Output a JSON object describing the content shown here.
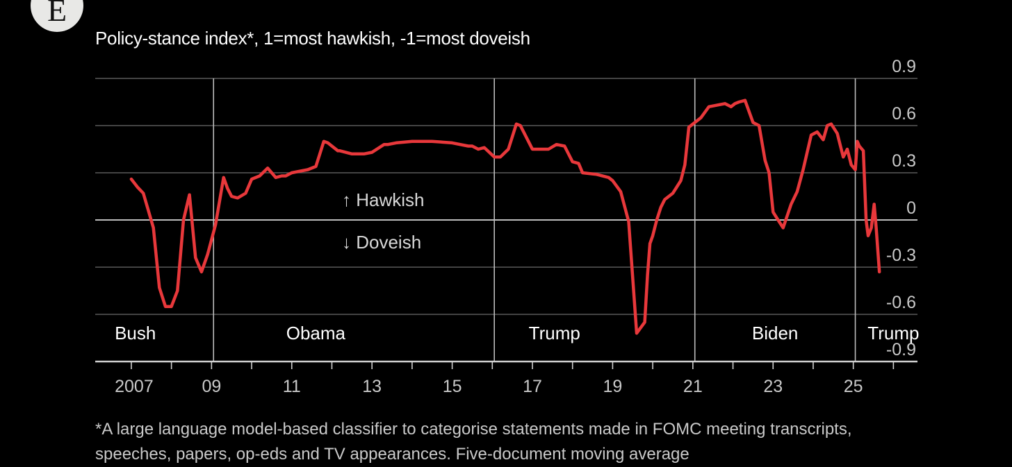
{
  "logo_letter": "E",
  "subtitle": "Policy-stance index*, 1=most hawkish, -1=most doveish",
  "footnote_line1": "*A large language model-based classifier to categorise statements made in FOMC meeting transcripts,",
  "footnote_line2": "speeches, papers, op-eds and TV appearances. Five-document moving average",
  "colors": {
    "line": "#e8383b",
    "grid": "#5a5a5a",
    "zero": "#bdbdbd",
    "axis": "#d0d0d0",
    "divider": "#bdbdbd"
  },
  "chart_data": {
    "type": "line",
    "title": "",
    "ylabel": "Policy-stance index",
    "xlabel": "",
    "xlim": [
      2006.1,
      2026.6
    ],
    "ylim": [
      -0.9,
      0.9
    ],
    "y_ticks": [
      0.9,
      0.6,
      0.3,
      0,
      -0.3,
      -0.6,
      -0.9
    ],
    "y_tick_labels": [
      "0.9",
      "0.6",
      "0.3",
      "0",
      "-0.3",
      "-0.6",
      "-0.9"
    ],
    "x_ticks": [
      2007,
      2008,
      2009,
      2010,
      2011,
      2012,
      2013,
      2014,
      2015,
      2016,
      2017,
      2018,
      2019,
      2020,
      2021,
      2022,
      2023,
      2024,
      2025,
      2026
    ],
    "x_tick_labels": [
      {
        "year": 2007,
        "label": "2007"
      },
      {
        "year": 2009,
        "label": "09"
      },
      {
        "year": 2011,
        "label": "11"
      },
      {
        "year": 2013,
        "label": "13"
      },
      {
        "year": 2015,
        "label": "15"
      },
      {
        "year": 2017,
        "label": "17"
      },
      {
        "year": 2019,
        "label": "19"
      },
      {
        "year": 2021,
        "label": "21"
      },
      {
        "year": 2023,
        "label": "23"
      },
      {
        "year": 2025,
        "label": "25"
      }
    ],
    "annotations": {
      "hawkish": "↑ Hawkish",
      "doveish": "↓ Doveish"
    },
    "presidencies": [
      {
        "name": "Bush",
        "start": 2006.1,
        "end": 2009.05
      },
      {
        "name": "Obama",
        "start": 2009.05,
        "end": 2016.05
      },
      {
        "name": "Trump",
        "start": 2016.05,
        "end": 2021.05
      },
      {
        "name": "Biden",
        "start": 2021.05,
        "end": 2025.05
      },
      {
        "name": "Trump",
        "start": 2025.05,
        "end": 2026.6
      }
    ],
    "series": [
      {
        "name": "Policy-stance index (five-document moving average)",
        "x": [
          2007.0,
          2007.15,
          2007.3,
          2007.55,
          2007.7,
          2007.85,
          2008.0,
          2008.15,
          2008.3,
          2008.45,
          2008.6,
          2008.75,
          2008.9,
          2009.1,
          2009.3,
          2009.4,
          2009.5,
          2009.65,
          2009.85,
          2010.0,
          2010.2,
          2010.4,
          2010.6,
          2010.75,
          2010.85,
          2011.0,
          2011.2,
          2011.4,
          2011.6,
          2011.8,
          2011.9,
          2012.15,
          2012.2,
          2012.5,
          2012.8,
          2013.0,
          2013.3,
          2013.4,
          2013.6,
          2014.0,
          2014.5,
          2015.0,
          2015.4,
          2015.5,
          2015.65,
          2015.8,
          2016.05,
          2016.2,
          2016.4,
          2016.6,
          2016.7,
          2017.0,
          2017.3,
          2017.4,
          2017.6,
          2017.8,
          2018.0,
          2018.15,
          2018.25,
          2018.6,
          2018.9,
          2019.0,
          2019.2,
          2019.4,
          2019.6,
          2019.8,
          2019.87,
          2019.93,
          2020.0,
          2020.1,
          2020.2,
          2020.3,
          2020.5,
          2020.7,
          2020.8,
          2020.9,
          2021.05,
          2021.2,
          2021.4,
          2021.8,
          2021.95,
          2022.05,
          2022.15,
          2022.3,
          2022.5,
          2022.65,
          2022.8,
          2022.9,
          2023.0,
          2023.15,
          2023.25,
          2023.45,
          2023.6,
          2023.75,
          2023.95,
          2024.1,
          2024.25,
          2024.35,
          2024.45,
          2024.6,
          2024.75,
          2024.85,
          2024.95,
          2025.05,
          2025.1,
          2025.15,
          2025.25,
          2025.32,
          2025.37,
          2025.45,
          2025.52,
          2025.57,
          2025.65
        ],
        "values": [
          0.26,
          0.21,
          0.17,
          -0.05,
          -0.43,
          -0.55,
          -0.55,
          -0.45,
          0.0,
          0.16,
          -0.24,
          -0.33,
          -0.22,
          -0.03,
          0.27,
          0.2,
          0.15,
          0.14,
          0.17,
          0.26,
          0.28,
          0.33,
          0.27,
          0.28,
          0.28,
          0.3,
          0.31,
          0.32,
          0.34,
          0.5,
          0.49,
          0.44,
          0.44,
          0.42,
          0.42,
          0.43,
          0.48,
          0.48,
          0.49,
          0.5,
          0.5,
          0.49,
          0.47,
          0.47,
          0.45,
          0.46,
          0.4,
          0.4,
          0.45,
          0.61,
          0.6,
          0.45,
          0.45,
          0.45,
          0.48,
          0.47,
          0.37,
          0.36,
          0.3,
          0.29,
          0.27,
          0.25,
          0.18,
          -0.01,
          -0.72,
          -0.65,
          -0.35,
          -0.15,
          -0.1,
          0.0,
          0.08,
          0.13,
          0.17,
          0.25,
          0.35,
          0.59,
          0.62,
          0.65,
          0.72,
          0.74,
          0.72,
          0.74,
          0.75,
          0.76,
          0.62,
          0.6,
          0.38,
          0.3,
          0.05,
          -0.01,
          -0.05,
          0.1,
          0.18,
          0.32,
          0.54,
          0.56,
          0.51,
          0.6,
          0.61,
          0.55,
          0.4,
          0.45,
          0.35,
          0.32,
          0.5,
          0.47,
          0.44,
          0.0,
          -0.1,
          -0.05,
          0.1,
          -0.05,
          -0.33
        ]
      }
    ]
  }
}
